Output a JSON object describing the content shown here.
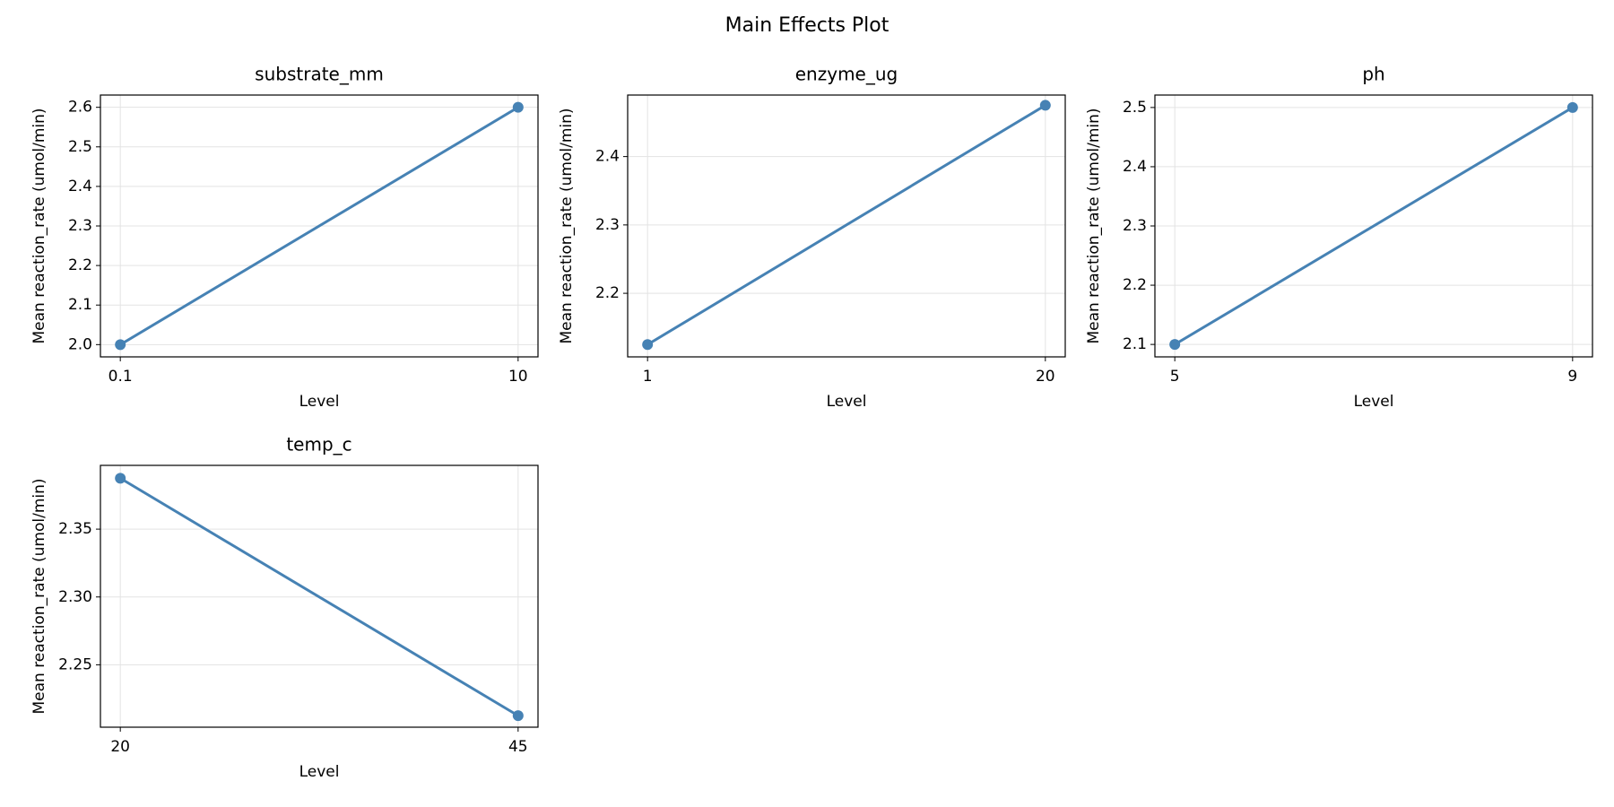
{
  "title": "Main Effects Plot",
  "chart_data": [
    {
      "type": "line",
      "title": "substrate_mm",
      "x_label": "Level",
      "y_label": "Mean reaction_rate (umol/min)",
      "categories": [
        "0.1",
        "10"
      ],
      "values": [
        2.0,
        2.6
      ],
      "color": "#4682b4",
      "ylim": [
        1.969,
        2.631
      ],
      "yticks": [
        {
          "value": 2.0,
          "label": "2.0"
        },
        2.1,
        2.2,
        2.3,
        2.4,
        2.5,
        2.6
      ],
      "grid": true
    },
    {
      "type": "line",
      "title": "enzyme_ug",
      "x_label": "Level",
      "y_label": "Mean reaction_rate (umol/min)",
      "categories": [
        "1",
        "20"
      ],
      "values": [
        2.125,
        2.475
      ],
      "color": "#4682b4",
      "ylim": [
        2.107,
        2.49
      ],
      "yticks": [
        2.2,
        2.3,
        2.4
      ],
      "grid": true
    },
    {
      "type": "line",
      "title": "ph",
      "x_label": "Level",
      "y_label": "Mean reaction_rate (umol/min)",
      "categories": [
        "5",
        "9"
      ],
      "values": [
        2.1,
        2.5
      ],
      "color": "#4682b4",
      "ylim": [
        2.079,
        2.521
      ],
      "yticks": [
        2.1,
        2.2,
        2.3,
        2.4,
        2.5
      ],
      "grid": true
    },
    {
      "type": "line",
      "title": "temp_c",
      "x_label": "Level",
      "y_label": "Mean reaction_rate (umol/min)",
      "categories": [
        "20",
        "45"
      ],
      "values": [
        2.3875,
        2.2125
      ],
      "color": "#4682b4",
      "ylim": [
        2.204,
        2.397
      ],
      "yticks": [
        2.25,
        {
          "value": 2.3,
          "label": "2.30"
        },
        2.35
      ],
      "grid": true
    }
  ]
}
